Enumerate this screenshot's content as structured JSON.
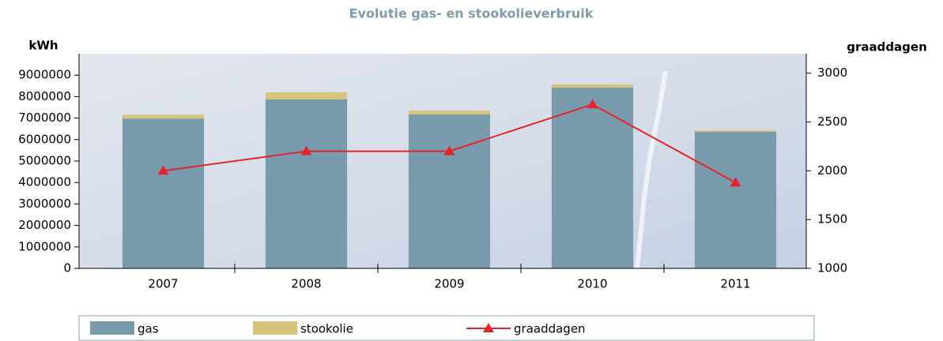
{
  "chart_data": {
    "type": "bar-line",
    "title": "Evolutie gas- en stookolieverbruik",
    "y_label": "kWh",
    "y2_label": "graaddagen",
    "categories": [
      "2007",
      "2008",
      "2009",
      "2010",
      "2011"
    ],
    "series": [
      {
        "name": "gas",
        "type": "bar",
        "color": "#7a9aae",
        "values": [
          6980000,
          7870000,
          7170000,
          8420000,
          6360000
        ]
      },
      {
        "name": "stookolie",
        "type": "bar",
        "color": "#d7c57b",
        "values": [
          180000,
          330000,
          180000,
          150000,
          70000
        ]
      },
      {
        "name": "graaddagen",
        "type": "line",
        "axis": "y2",
        "color": "#e0262c",
        "values": [
          2000,
          2200,
          2200,
          2680,
          1880
        ]
      }
    ],
    "stacked": true,
    "ylim": [
      0,
      10000000
    ],
    "yticks": [
      0,
      1000000,
      2000000,
      3000000,
      4000000,
      5000000,
      6000000,
      7000000,
      8000000,
      9000000
    ],
    "y2lim": [
      1000,
      3200
    ],
    "y2ticks": [
      1000,
      1500,
      2000,
      2500,
      3000
    ]
  }
}
